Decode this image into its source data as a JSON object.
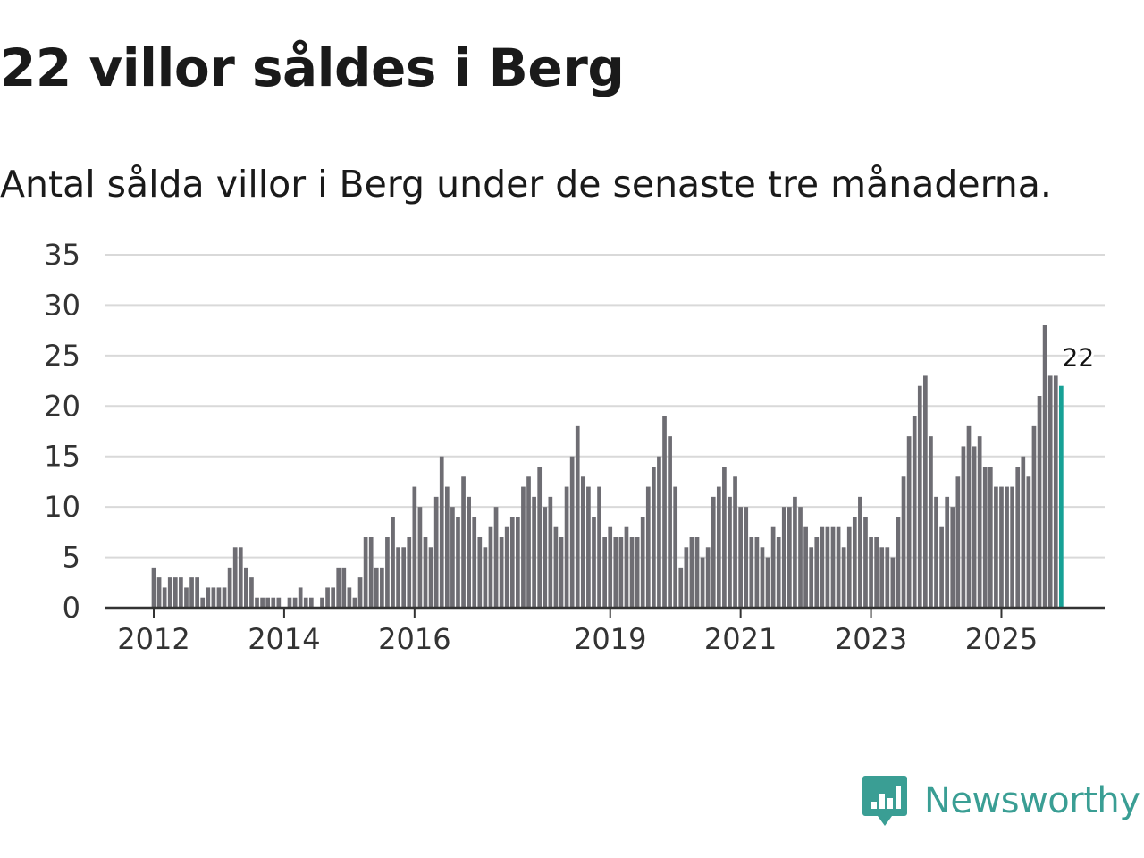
{
  "header": {
    "title": "22 villor såldes i Berg",
    "subtitle": "Antal sålda villor i Berg under de senaste tre månaderna."
  },
  "brand": {
    "name": "Newsworthy",
    "icon": "newsworthy-logo-icon",
    "color": "#3a9e94"
  },
  "colors": {
    "bar": "#6e6d73",
    "highlight": "#17a196",
    "grid": "#d9d9d9",
    "axis": "#333333"
  },
  "chart_data": {
    "type": "bar",
    "title": "22 villor såldes i Berg",
    "xlabel": "",
    "ylabel": "",
    "ylim": [
      0,
      35
    ],
    "yticks": [
      0,
      5,
      10,
      15,
      20,
      25,
      30,
      35
    ],
    "grid": true,
    "start": "2012-01",
    "xticks": [
      {
        "label": "2012",
        "index": 0
      },
      {
        "label": "2014",
        "index": 24
      },
      {
        "label": "2016",
        "index": 48
      },
      {
        "label": "2019",
        "index": 84
      },
      {
        "label": "2021",
        "index": 108
      },
      {
        "label": "2023",
        "index": 132
      },
      {
        "label": "2025",
        "index": 156
      }
    ],
    "values": [
      4,
      3,
      2,
      3,
      3,
      3,
      2,
      3,
      3,
      1,
      2,
      2,
      2,
      2,
      4,
      6,
      6,
      4,
      3,
      1,
      1,
      1,
      1,
      1,
      0,
      1,
      1,
      2,
      1,
      1,
      0,
      1,
      2,
      2,
      4,
      4,
      2,
      1,
      3,
      7,
      7,
      4,
      4,
      7,
      9,
      6,
      6,
      7,
      12,
      10,
      7,
      6,
      11,
      15,
      12,
      10,
      9,
      13,
      11,
      9,
      7,
      6,
      8,
      10,
      7,
      8,
      9,
      9,
      12,
      13,
      11,
      14,
      10,
      11,
      8,
      7,
      12,
      15,
      18,
      13,
      12,
      9,
      12,
      7,
      8,
      7,
      7,
      8,
      7,
      7,
      9,
      12,
      14,
      15,
      19,
      17,
      12,
      4,
      6,
      7,
      7,
      5,
      6,
      11,
      12,
      14,
      11,
      13,
      10,
      10,
      7,
      7,
      6,
      5,
      8,
      7,
      10,
      10,
      11,
      10,
      8,
      6,
      7,
      8,
      8,
      8,
      8,
      6,
      8,
      9,
      11,
      9,
      7,
      7,
      6,
      6,
      5,
      9,
      13,
      17,
      19,
      22,
      23,
      17,
      11,
      8,
      11,
      10,
      13,
      16,
      18,
      16,
      17,
      14,
      14,
      12,
      12,
      12,
      12,
      14,
      15,
      13,
      18,
      21,
      28,
      23,
      23,
      22
    ],
    "highlight": {
      "index": 167,
      "value": 22,
      "label": "22"
    }
  }
}
